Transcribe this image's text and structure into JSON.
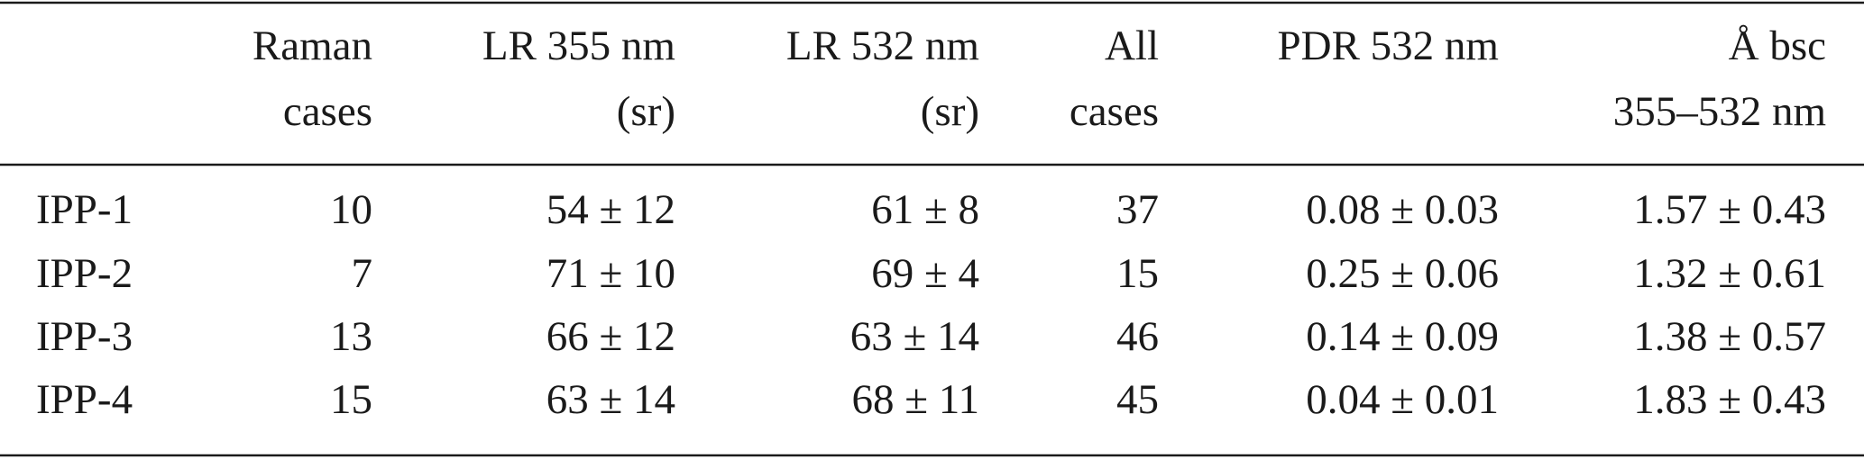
{
  "table": {
    "header": [
      [],
      [
        "Raman",
        "cases"
      ],
      [
        "LR 355 nm",
        "(sr)"
      ],
      [
        "LR 532 nm",
        "(sr)"
      ],
      [
        "All",
        "cases"
      ],
      [
        "PDR 532 nm"
      ],
      [
        "Å bsc",
        "355–532 nm"
      ]
    ],
    "rows": [
      [
        "IPP-1",
        "10",
        "54 ± 12",
        "61 ± 8",
        "37",
        "0.08 ± 0.03",
        "1.57 ± 0.43"
      ],
      [
        "IPP-2",
        "7",
        "71 ± 10",
        "69 ± 4",
        "15",
        "0.25 ± 0.06",
        "1.32 ± 0.61"
      ],
      [
        "IPP-3",
        "13",
        "66 ± 12",
        "63 ± 14",
        "46",
        "0.14 ± 0.09",
        "1.38 ± 0.57"
      ],
      [
        "IPP-4",
        "15",
        "63 ± 14",
        "68 ± 11",
        "45",
        "0.04 ± 0.01",
        "1.83 ± 0.43"
      ]
    ]
  }
}
